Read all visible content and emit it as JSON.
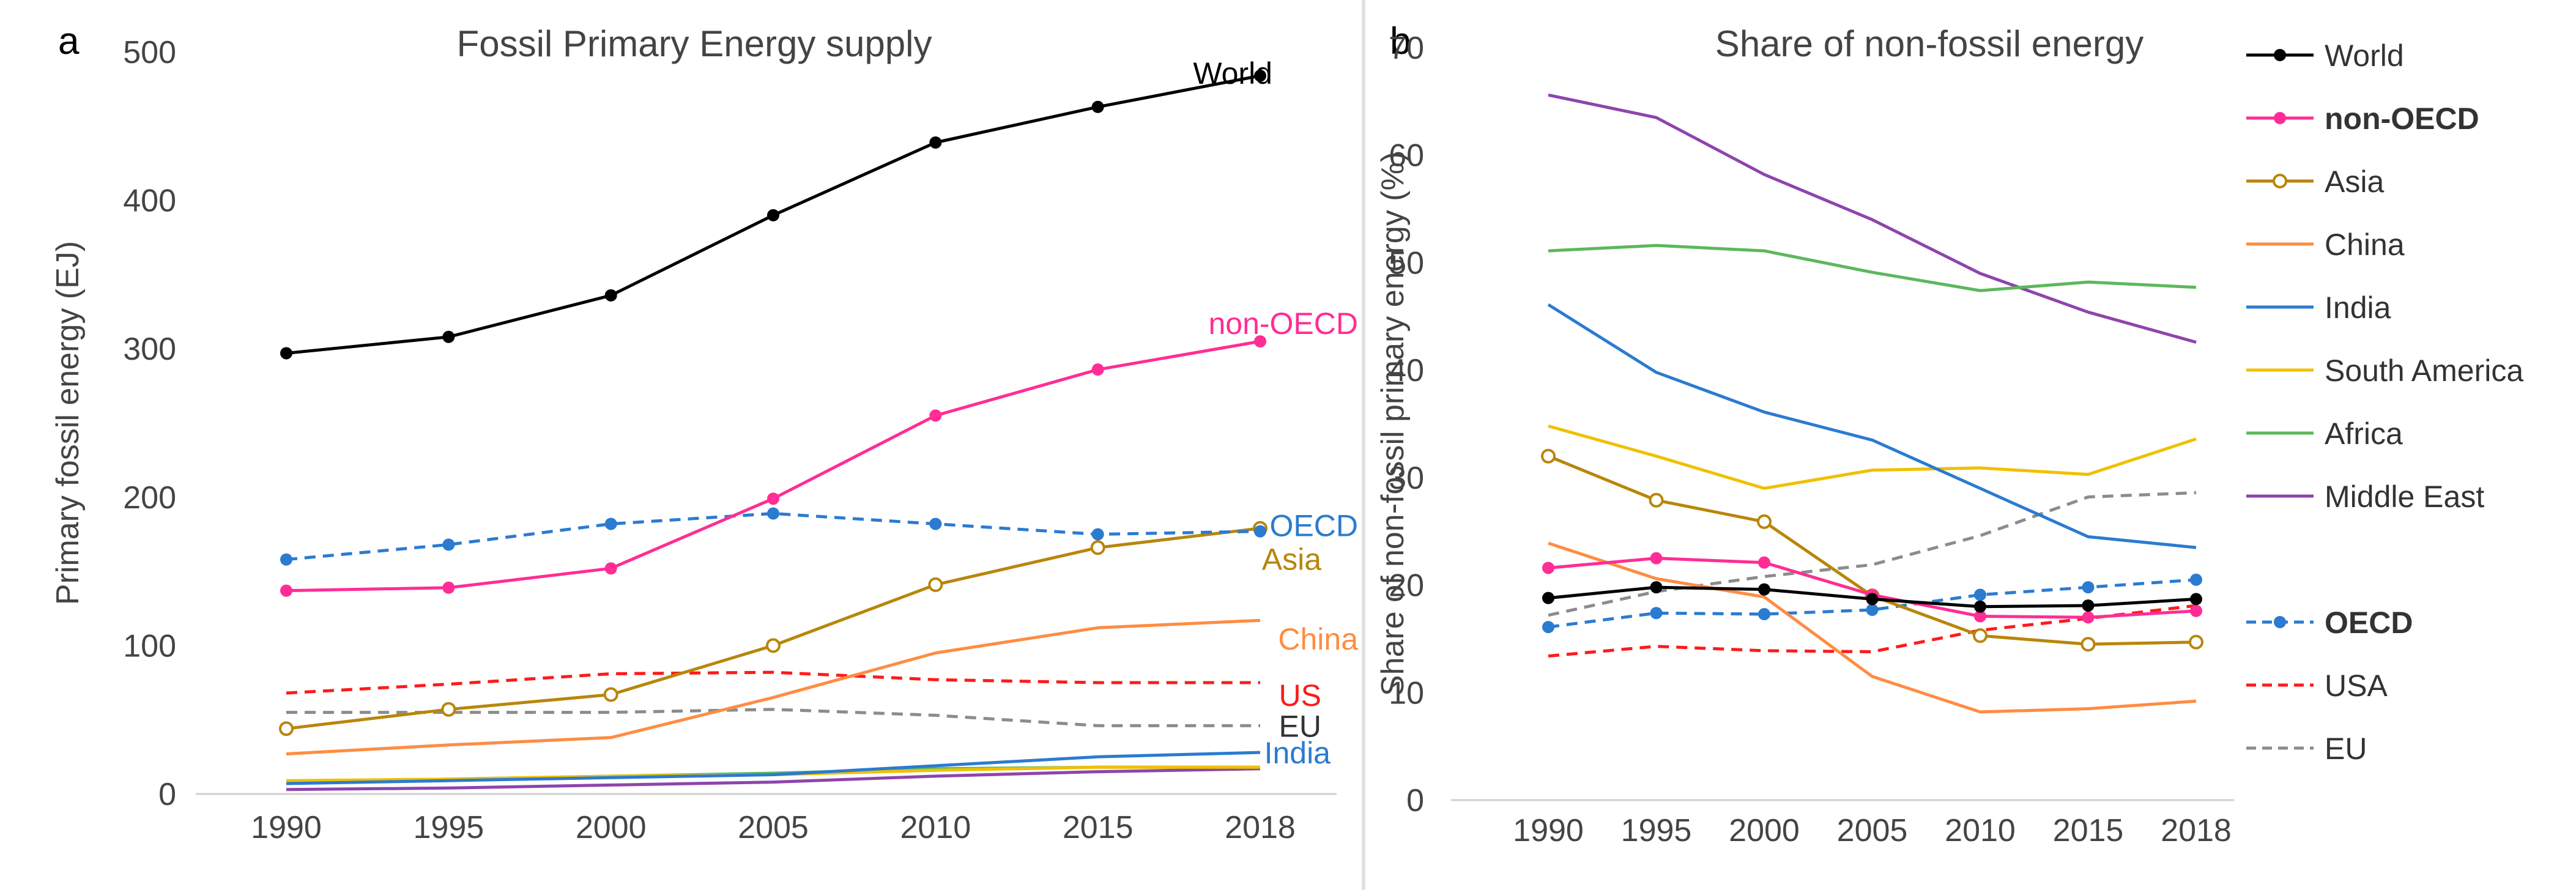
{
  "panels": [
    {
      "letter": "a",
      "chart_data": {
        "type": "line",
        "title": "Fossil Primary Energy supply",
        "xlabel": "",
        "ylabel": "Primary fossil energy (EJ)",
        "x": [
          1990,
          1995,
          2000,
          2005,
          2010,
          2015,
          2018
        ],
        "xticks": [
          "1990",
          "1995",
          "2000",
          "2005",
          "2010",
          "2015",
          "2018"
        ],
        "ylim": [
          0,
          500
        ],
        "yticks": [
          0,
          100,
          200,
          300,
          400,
          500
        ],
        "grid": false,
        "legend": "inline labels at line ends",
        "series": [
          {
            "name": "World",
            "values": [
              297,
              308,
              336,
              390,
              439,
              463,
              484
            ],
            "color": "#000000",
            "dash": "solid",
            "marker": "filled",
            "bold": false,
            "label_color": "#000000",
            "label_anchor": "end"
          },
          {
            "name": "non-OECD",
            "values": [
              137,
              139,
              152,
              199,
              255,
              286,
              305
            ],
            "color": "#ff2d95",
            "dash": "solid",
            "marker": "filled",
            "bold": false,
            "label_color": "#ff2d95",
            "label_anchor": "end"
          },
          {
            "name": "OECD",
            "values": [
              158,
              168,
              182,
              189,
              182,
              175,
              177
            ],
            "color": "#2b7bd0",
            "dash": "dashed",
            "marker": "filled",
            "bold": false,
            "label_color": "#2b7bd0",
            "label_anchor": "end"
          },
          {
            "name": "Asia",
            "values": [
              44,
              57,
              67,
              100,
              141,
              166,
              179
            ],
            "color": "#b8860b",
            "dash": "solid",
            "marker": "hollow",
            "bold": false,
            "label_color": "#b8860b",
            "label_anchor": "end"
          },
          {
            "name": "China",
            "values": [
              27,
              33,
              38,
              65,
              95,
              112,
              117
            ],
            "color": "#ff8c42",
            "dash": "solid",
            "marker": "none",
            "bold": false,
            "label_color": "#ff8c42",
            "label_anchor": "end"
          },
          {
            "name": "US",
            "values": [
              68,
              74,
              81,
              82,
              77,
              75,
              75
            ],
            "color": "#ff1a1a",
            "dash": "dashed",
            "marker": "none",
            "bold": false,
            "label_color": "#ff1a1a",
            "label_anchor": "end"
          },
          {
            "name": "EU",
            "values": [
              55,
              55,
              55,
              57,
              53,
              46,
              46
            ],
            "color": "#8c8c8c",
            "dash": "dashed",
            "marker": "none",
            "bold": false,
            "label_color": "#333333",
            "label_anchor": "end"
          },
          {
            "name": "India",
            "values": [
              7,
              9,
              11,
              13,
              19,
              25,
              28
            ],
            "color": "#2b7bd0",
            "dash": "solid",
            "marker": "none",
            "bold": false,
            "label_color": "#2b7bd0",
            "label_anchor": "end"
          },
          {
            "name": "",
            "values": [
              9,
              10,
              12,
              13,
              16,
              18,
              18
            ],
            "color": "#f0c000",
            "dash": "solid",
            "marker": "none",
            "bold": false,
            "label_color": "#f0c000",
            "label_anchor": "end"
          },
          {
            "name": "",
            "values": [
              8,
              10,
              12,
              14,
              17,
              18,
              18
            ],
            "color": "#5cb85c",
            "dash": "solid",
            "marker": "none",
            "bold": false,
            "label_color": "#5cb85c",
            "label_anchor": "end"
          },
          {
            "name": "",
            "values": [
              3,
              4,
              6,
              8,
              12,
              15,
              17
            ],
            "color": "#8e44ad",
            "dash": "solid",
            "marker": "none",
            "bold": false,
            "label_color": "#8e44ad",
            "label_anchor": "end"
          }
        ]
      }
    },
    {
      "letter": "b",
      "chart_data": {
        "type": "line",
        "title": "Share of non-fossil energy",
        "xlabel": "",
        "ylabel": "Share of non-fossil primary energy (%)",
        "x": [
          1990,
          1995,
          2000,
          2005,
          2010,
          2015,
          2018
        ],
        "xticks": [
          "1990",
          "1995",
          "2000",
          "2005",
          "2010",
          "2015",
          "2018"
        ],
        "ylim": [
          0,
          70
        ],
        "yticks": [
          0,
          10,
          20,
          30,
          40,
          50,
          60,
          70
        ],
        "grid": false,
        "legend": "right",
        "series": [
          {
            "name": "World",
            "values": [
              18.8,
              19.8,
              19.6,
              18.7,
              18.0,
              18.1,
              18.7
            ],
            "color": "#000000",
            "dash": "solid",
            "marker": "filled",
            "bold": false,
            "label_color": "#333333"
          },
          {
            "name": "non-OECD",
            "values": [
              21.6,
              22.5,
              22.1,
              19.1,
              17.1,
              17.0,
              17.6
            ],
            "color": "#ff2d95",
            "dash": "solid",
            "marker": "filled",
            "bold": true,
            "label_color": "#333333"
          },
          {
            "name": "Asia",
            "values": [
              32.0,
              27.9,
              25.9,
              19.0,
              15.3,
              14.5,
              14.7
            ],
            "color": "#b8860b",
            "dash": "solid",
            "marker": "hollow",
            "bold": false,
            "label_color": "#333333"
          },
          {
            "name": "China",
            "values": [
              23.9,
              20.6,
              18.9,
              11.5,
              8.2,
              8.5,
              9.2
            ],
            "color": "#ff8c42",
            "dash": "solid",
            "marker": "none",
            "bold": false,
            "label_color": "#333333"
          },
          {
            "name": "India",
            "values": [
              46.1,
              39.8,
              36.1,
              33.5,
              29.0,
              24.5,
              23.5
            ],
            "color": "#2b7bd0",
            "dash": "solid",
            "marker": "none",
            "bold": false,
            "label_color": "#333333"
          },
          {
            "name": "South America",
            "values": [
              34.8,
              32.0,
              29.0,
              30.7,
              30.9,
              30.3,
              33.6
            ],
            "color": "#f0c000",
            "dash": "solid",
            "marker": "none",
            "bold": false,
            "label_color": "#333333"
          },
          {
            "name": "Africa",
            "values": [
              51.1,
              51.6,
              51.1,
              49.1,
              47.4,
              48.2,
              47.7
            ],
            "color": "#5cb85c",
            "dash": "solid",
            "marker": "none",
            "bold": false,
            "label_color": "#333333"
          },
          {
            "name": "Middle East",
            "values": [
              65.6,
              63.5,
              58.2,
              54.0,
              49.0,
              45.4,
              42.6
            ],
            "color": "#8e44ad",
            "dash": "solid",
            "marker": "none",
            "bold": false,
            "label_color": "#333333"
          },
          {
            "name": "OECD",
            "values": [
              16.1,
              17.4,
              17.3,
              17.7,
              19.1,
              19.8,
              20.5
            ],
            "color": "#2b7bd0",
            "dash": "dashed",
            "marker": "filled",
            "bold": true,
            "label_color": "#333333"
          },
          {
            "name": "USA",
            "values": [
              13.4,
              14.3,
              13.9,
              13.8,
              15.8,
              16.9,
              18.1
            ],
            "color": "#ff1a1a",
            "dash": "dashed",
            "marker": "none",
            "bold": false,
            "label_color": "#333333"
          },
          {
            "name": "EU",
            "values": [
              17.2,
              19.4,
              20.8,
              21.9,
              24.6,
              28.2,
              28.6
            ],
            "color": "#8c8c8c",
            "dash": "dashed",
            "marker": "none",
            "bold": false,
            "label_color": "#333333"
          }
        ]
      }
    }
  ]
}
